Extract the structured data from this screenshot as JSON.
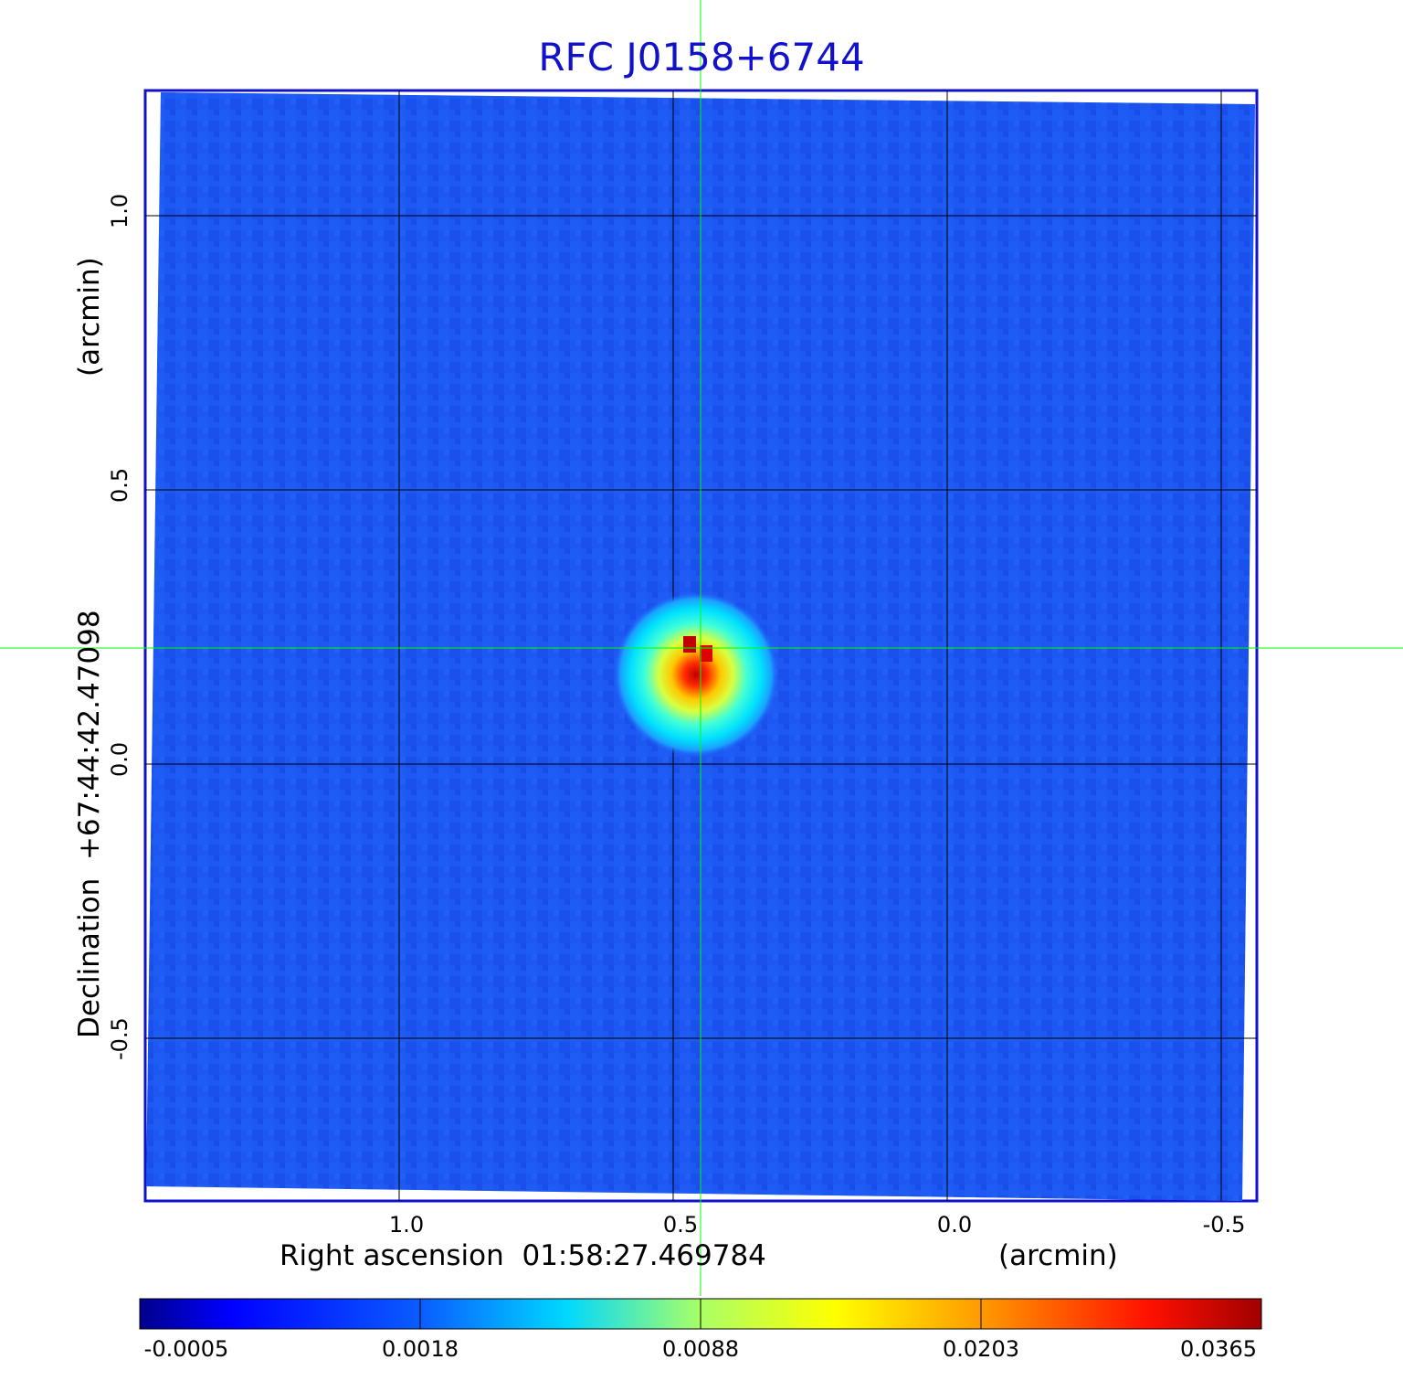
{
  "title": "RFC J0158+6744",
  "x_axis": {
    "label": "Right ascension  01:58:27.469784",
    "unit": "(arcmin)",
    "ticks": [
      "1.0",
      "0.5",
      "0.0",
      "-0.5"
    ]
  },
  "y_axis": {
    "label": "Declination  +67:44:42.47098",
    "unit": "(arcmin)",
    "ticks": [
      "1.0",
      "0.5",
      "0.0",
      "-0.5"
    ]
  },
  "colorbar": {
    "ticks": [
      "-0.0005",
      "0.0018",
      "0.0088",
      "0.0203",
      "0.0365"
    ],
    "colormap": [
      "#00008b",
      "#0000ff",
      "#1e90ff",
      "#00ffff",
      "#adff2f",
      "#ffff00",
      "#ff8c00",
      "#ff0000",
      "#8b0000"
    ]
  },
  "colors": {
    "background_field": "#1e4ff0",
    "frame": "#1111cc",
    "crosshair": "#00ff00",
    "grid": "#000000"
  }
}
